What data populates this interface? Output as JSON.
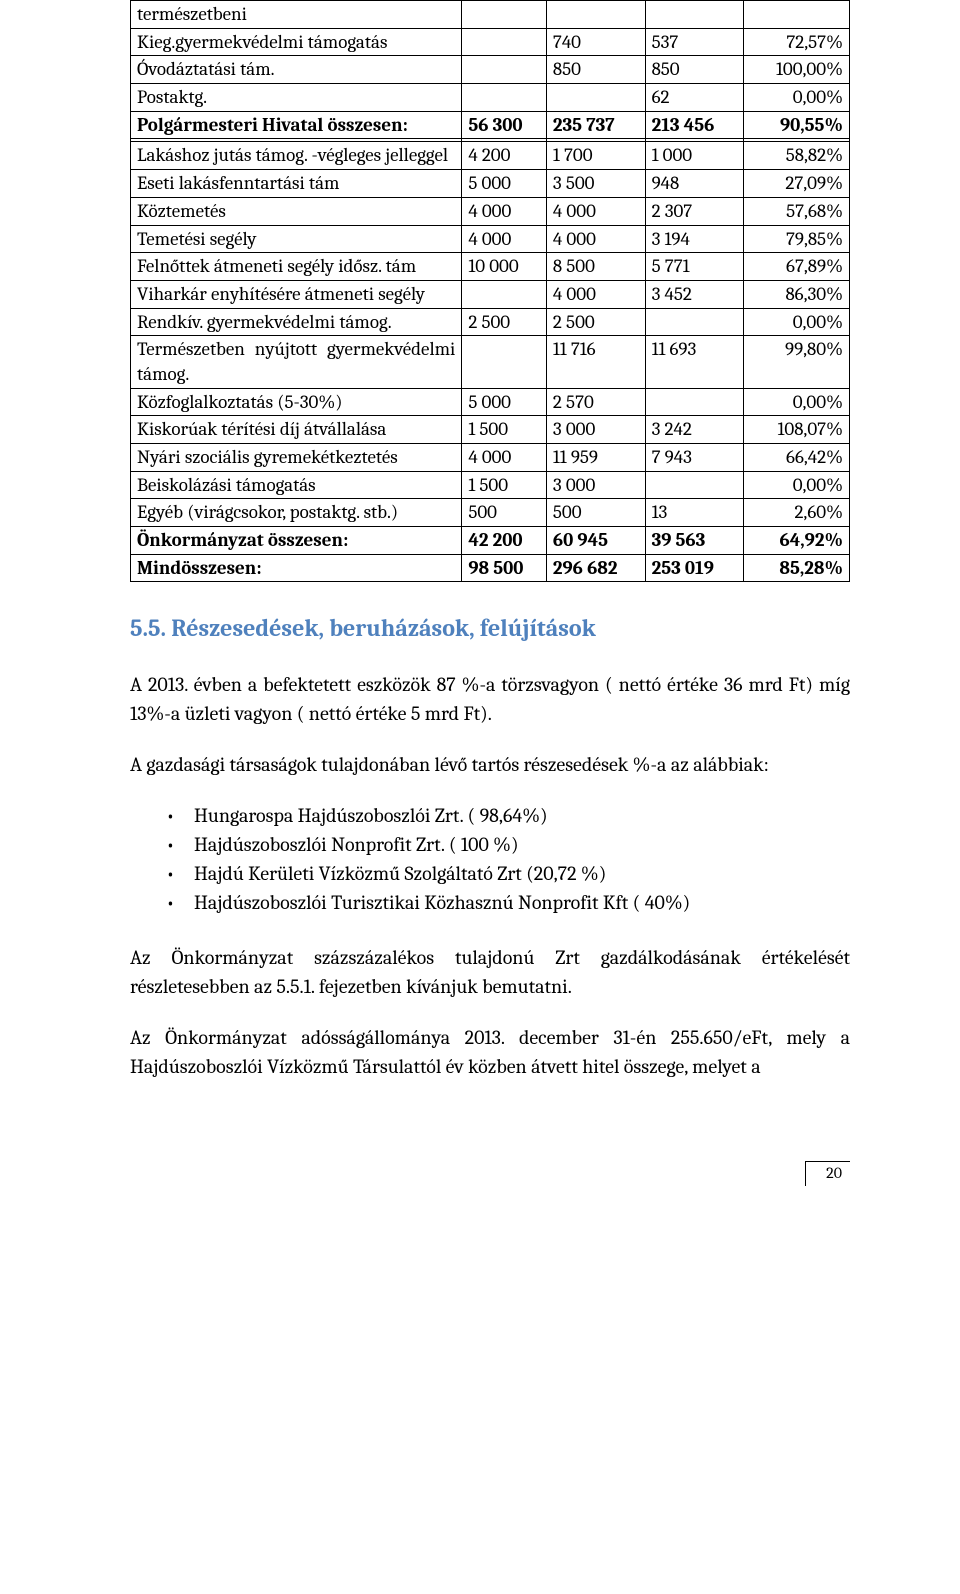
{
  "table": {
    "rows": [
      {
        "label": "természetbeni",
        "c1": "",
        "c2": "",
        "c3": "",
        "c4": "",
        "bold": false
      },
      {
        "label": "Kieg.gyermekvédelmi támogatás",
        "c1": "",
        "c2": "740",
        "c3": "537",
        "c4": "72,57%",
        "bold": false
      },
      {
        "label": "Óvodáztatási tám.",
        "c1": "",
        "c2": "850",
        "c3": "850",
        "c4": "100,00%",
        "bold": false
      },
      {
        "label": "Postaktg.",
        "c1": "",
        "c2": "",
        "c3": "62",
        "c4": "0,00%",
        "bold": false
      },
      {
        "label": "Polgármesteri Hivatal összesen:",
        "c1": "56 300",
        "c2": "235 737",
        "c3": "213 456",
        "c4": "90,55%",
        "bold": true
      },
      {
        "label": "",
        "c1": "",
        "c2": "",
        "c3": "",
        "c4": "",
        "bold": false
      },
      {
        "label": "Lakáshoz jutás támog. -végleges jelleggel",
        "c1": "4 200",
        "c2": "1 700",
        "c3": "1 000",
        "c4": "58,82%",
        "bold": false,
        "justify": true
      },
      {
        "label": "Eseti lakásfenntartási tám",
        "c1": "5 000",
        "c2": "3 500",
        "c3": "948",
        "c4": "27,09%",
        "bold": false
      },
      {
        "label": "Köztemetés",
        "c1": "4 000",
        "c2": "4 000",
        "c3": "2 307",
        "c4": "57,68%",
        "bold": false
      },
      {
        "label": "Temetési segély",
        "c1": "4 000",
        "c2": "4 000",
        "c3": "3 194",
        "c4": "79,85%",
        "bold": false
      },
      {
        "label": "Felnőttek átmeneti segély idősz. tám",
        "c1": "10 000",
        "c2": "8 500",
        "c3": "5 771",
        "c4": "67,89%",
        "bold": false
      },
      {
        "label": "Viharkár enyhítésére átmeneti segély",
        "c1": "",
        "c2": "4 000",
        "c3": "3 452",
        "c4": "86,30%",
        "bold": false
      },
      {
        "label": "Rendkív. gyermekvédelmi támog.",
        "c1": "2 500",
        "c2": "2 500",
        "c3": "",
        "c4": "0,00%",
        "bold": false
      },
      {
        "label": "Természetben nyújtott gyermekvédelmi támog.",
        "c1": "",
        "c2": "11 716",
        "c3": "11 693",
        "c4": "99,80%",
        "bold": false,
        "justify": true
      },
      {
        "label": "Közfoglalkoztatás (5-30%)",
        "c1": "5 000",
        "c2": "2 570",
        "c3": "",
        "c4": "0,00%",
        "bold": false
      },
      {
        "label": "Kiskorúak térítési díj átvállalása",
        "c1": "1 500",
        "c2": "3 000",
        "c3": "3 242",
        "c4": "108,07%",
        "bold": false
      },
      {
        "label": "Nyári szociális gyremekétkeztetés",
        "c1": "4 000",
        "c2": "11 959",
        "c3": "7 943",
        "c4": "66,42%",
        "bold": false
      },
      {
        "label": "Beiskolázási támogatás",
        "c1": "1 500",
        "c2": "3 000",
        "c3": "",
        "c4": "0,00%",
        "bold": false
      },
      {
        "label": "Egyéb (virágcsokor, postaktg. stb.)",
        "c1": "500",
        "c2": "500",
        "c3": "13",
        "c4": "2,60%",
        "bold": false
      },
      {
        "label": "Önkormányzat összesen:",
        "c1": "42 200",
        "c2": "60 945",
        "c3": "39 563",
        "c4": "64,92%",
        "bold": true
      },
      {
        "label": "Mindösszesen:",
        "c1": "98 500",
        "c2": "296 682",
        "c3": "253 019",
        "c4": "85,28%",
        "bold": true
      }
    ]
  },
  "section_heading": "5.5. Részesedések, beruházások, felújítások",
  "para1": "A  2013. évben a befektetett eszközök 87 %-a  törzsvagyon ( nettó értéke 36 mrd Ft) míg 13%-a üzleti vagyon ( nettó értéke 5 mrd Ft).",
  "para2": "A gazdasági társaságok tulajdonában lévő tartós részesedések %-a  az alábbiak:",
  "bullets": [
    "Hungarospa Hajdúszoboszlói Zrt. ( 98,64%)",
    "Hajdúszoboszlói Nonprofit Zrt. ( 100 %)",
    "Hajdú Kerületi Vízközmű Szolgáltató Zrt (20,72 %)",
    "Hajdúszoboszlói Turisztikai Közhasznú Nonprofit Kft ( 40%)"
  ],
  "para3": "Az Önkormányzat százszázalékos tulajdonú Zrt gazdálkodásának értékelését részletesebben az 5.5.1. fejezetben kívánjuk bemutatni.",
  "para4": "Az Önkormányzat adósságállománya 2013. december 31-én 255.650/eFt, mely a Hajdúszoboszlói Vízközmű Társulattól év közben átvett hitel összege, melyet a",
  "page_number": "20",
  "colors": {
    "heading": "#4f81bd",
    "text": "#000000",
    "border": "#000000",
    "background": "#ffffff"
  }
}
